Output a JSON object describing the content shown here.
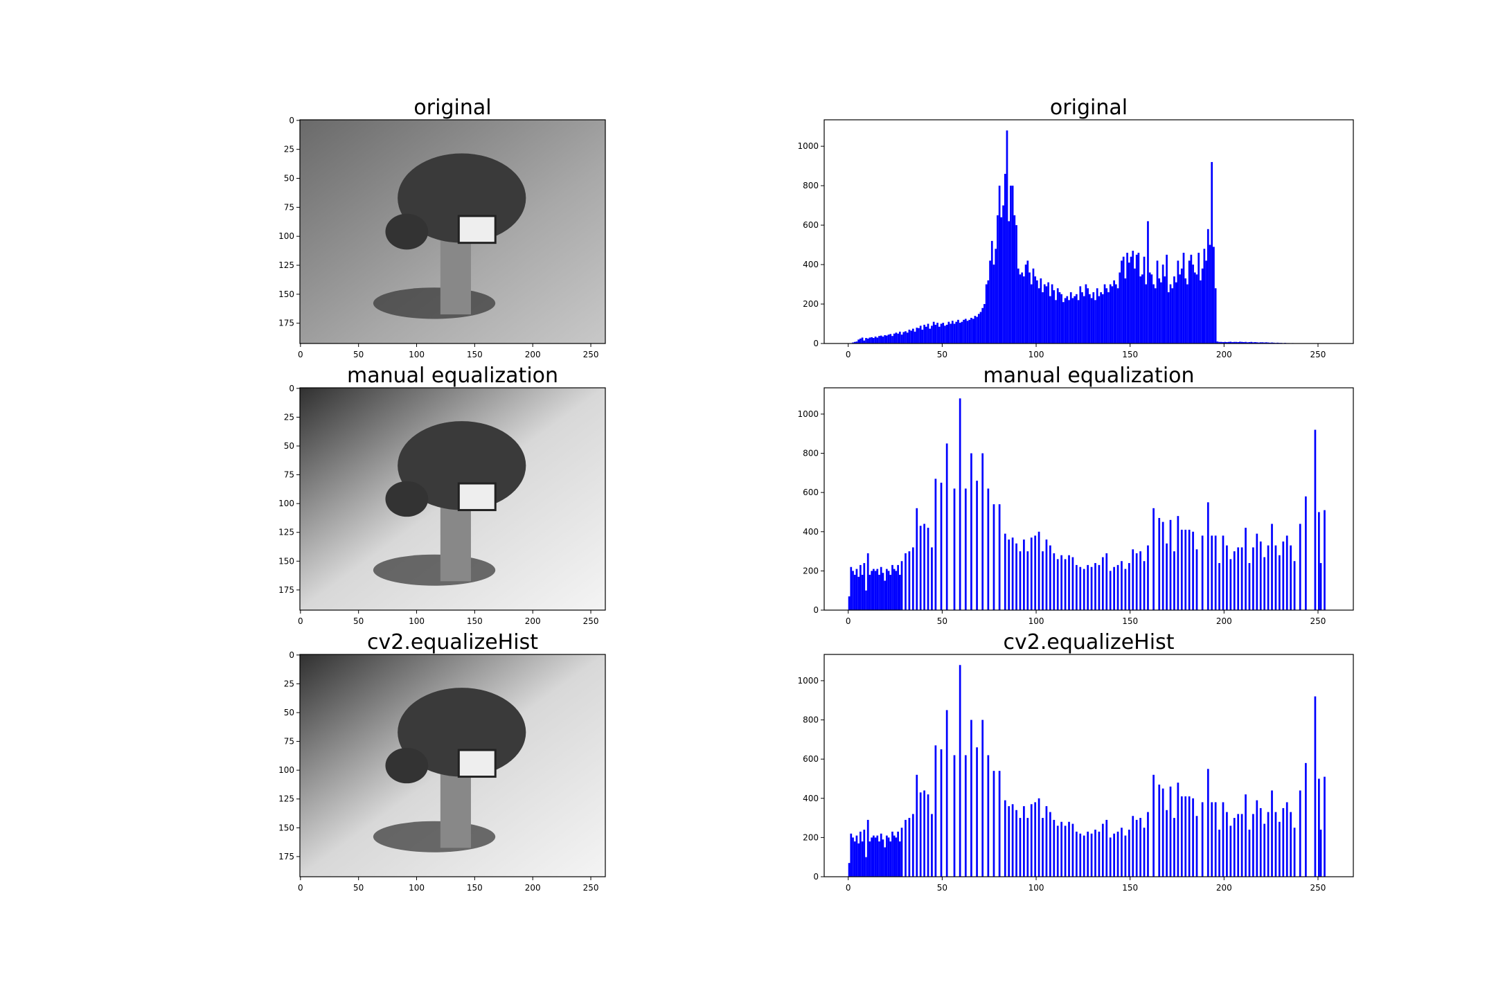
{
  "chart_data": [
    {
      "type": "image",
      "title": "original",
      "xlim": [
        -0.5,
        262.5
      ],
      "ylim": [
        192.5,
        -0.5
      ],
      "xticks": [
        0,
        50,
        100,
        150,
        200,
        250
      ],
      "yticks": [
        0,
        25,
        50,
        75,
        100,
        125,
        150,
        175
      ]
    },
    {
      "type": "bar",
      "title": "original",
      "color": "#0000ff",
      "xlim": [
        -12.8,
        268.8
      ],
      "ylim": [
        0,
        1134
      ],
      "xticks": [
        0,
        50,
        100,
        150,
        200,
        250
      ],
      "yticks": [
        0,
        200,
        400,
        600,
        800,
        1000
      ],
      "x": [
        0,
        1,
        2,
        3,
        4,
        5,
        6,
        7,
        8,
        9,
        10,
        11,
        12,
        13,
        14,
        15,
        16,
        17,
        18,
        19,
        20,
        21,
        22,
        23,
        24,
        25,
        26,
        27,
        28,
        29,
        30,
        31,
        32,
        33,
        34,
        35,
        36,
        37,
        38,
        39,
        40,
        41,
        42,
        43,
        44,
        45,
        46,
        47,
        48,
        49,
        50,
        51,
        52,
        53,
        54,
        55,
        56,
        57,
        58,
        59,
        60,
        61,
        62,
        63,
        64,
        65,
        66,
        67,
        68,
        69,
        70,
        71,
        72,
        73,
        74,
        75,
        76,
        77,
        78,
        79,
        80,
        81,
        82,
        83,
        84,
        85,
        86,
        87,
        88,
        89,
        90,
        91,
        92,
        93,
        94,
        95,
        96,
        97,
        98,
        99,
        100,
        101,
        102,
        103,
        104,
        105,
        106,
        107,
        108,
        109,
        110,
        111,
        112,
        113,
        114,
        115,
        116,
        117,
        118,
        119,
        120,
        121,
        122,
        123,
        124,
        125,
        126,
        127,
        128,
        129,
        130,
        131,
        132,
        133,
        134,
        135,
        136,
        137,
        138,
        139,
        140,
        141,
        142,
        143,
        144,
        145,
        146,
        147,
        148,
        149,
        150,
        151,
        152,
        153,
        154,
        155,
        156,
        157,
        158,
        159,
        160,
        161,
        162,
        163,
        164,
        165,
        166,
        167,
        168,
        169,
        170,
        171,
        172,
        173,
        174,
        175,
        176,
        177,
        178,
        179,
        180,
        181,
        182,
        183,
        184,
        185,
        186,
        187,
        188,
        189,
        190,
        191,
        192,
        193,
        194,
        195,
        196,
        197,
        198,
        199,
        200,
        201,
        202,
        203,
        204,
        205,
        206,
        207,
        208,
        209,
        210,
        211,
        212,
        213,
        214,
        215,
        216,
        217,
        218,
        219,
        220,
        221,
        222,
        223,
        224,
        225,
        226,
        227,
        228,
        229,
        230,
        231,
        232,
        233,
        234,
        235,
        236,
        237,
        238,
        239
      ],
      "values": [
        0,
        2,
        5,
        8,
        10,
        20,
        25,
        30,
        15,
        28,
        25,
        30,
        32,
        28,
        35,
        30,
        38,
        40,
        35,
        42,
        40,
        45,
        48,
        38,
        50,
        55,
        50,
        60,
        45,
        58,
        62,
        55,
        70,
        65,
        75,
        60,
        80,
        78,
        90,
        70,
        95,
        85,
        100,
        75,
        90,
        110,
        95,
        105,
        85,
        100,
        105,
        90,
        95,
        110,
        100,
        115,
        100,
        110,
        120,
        105,
        110,
        120,
        125,
        115,
        120,
        130,
        125,
        140,
        135,
        150,
        160,
        180,
        200,
        300,
        320,
        420,
        520,
        400,
        480,
        650,
        800,
        640,
        700,
        860,
        1080,
        620,
        800,
        800,
        650,
        600,
        380,
        350,
        360,
        340,
        400,
        420,
        360,
        300,
        380,
        340,
        320,
        280,
        330,
        260,
        300,
        290,
        310,
        240,
        300,
        270,
        220,
        280,
        260,
        250,
        210,
        230,
        240,
        220,
        260,
        230,
        240,
        250,
        220,
        290,
        260,
        240,
        300,
        280,
        250,
        230,
        260,
        220,
        280,
        240,
        260,
        250,
        300,
        280,
        260,
        300,
        290,
        320,
        300,
        280,
        360,
        420,
        440,
        330,
        460,
        410,
        440,
        470,
        380,
        450,
        460,
        340,
        350,
        440,
        300,
        620,
        360,
        350,
        300,
        280,
        420,
        330,
        310,
        400,
        340,
        450,
        260,
        300,
        280,
        340,
        310,
        420,
        350,
        380,
        460,
        330,
        300,
        420,
        450,
        400,
        360,
        350,
        460,
        320,
        380,
        480,
        420,
        580,
        500,
        920,
        490,
        280,
        10,
        8,
        8,
        7,
        8,
        7,
        8,
        9,
        7,
        8,
        8,
        7,
        9,
        8,
        7,
        8,
        6,
        7,
        8,
        6,
        7,
        6,
        5,
        6,
        6,
        5,
        6,
        5,
        4,
        5,
        4,
        3,
        4,
        3,
        3,
        2,
        3,
        2,
        2,
        1,
        2,
        1,
        0,
        0
      ]
    },
    {
      "type": "image",
      "title": "manual equalization",
      "xlim": [
        -0.5,
        262.5
      ],
      "ylim": [
        192.5,
        -0.5
      ],
      "xticks": [
        0,
        50,
        100,
        150,
        200,
        250
      ],
      "yticks": [
        0,
        25,
        50,
        75,
        100,
        125,
        150,
        175
      ]
    },
    {
      "type": "bar",
      "title": "manual equalization",
      "color": "#0000ff",
      "xlim": [
        -12.8,
        268.8
      ],
      "ylim": [
        0,
        1134
      ],
      "xticks": [
        0,
        50,
        100,
        150,
        200,
        250
      ],
      "yticks": [
        0,
        200,
        400,
        600,
        800,
        1000
      ],
      "x": [
        0,
        1,
        2,
        3,
        4,
        5,
        6,
        7,
        8,
        9,
        10,
        11,
        12,
        13,
        14,
        15,
        16,
        17,
        18,
        19,
        20,
        21,
        22,
        23,
        24,
        25,
        26,
        27,
        28,
        30,
        32,
        34,
        36,
        38,
        40,
        42,
        44,
        46,
        49,
        52,
        56,
        59,
        62,
        65,
        68,
        71,
        74,
        77,
        80,
        83,
        85,
        87,
        89,
        91,
        93,
        95,
        97,
        99,
        101,
        103,
        105,
        107,
        109,
        111,
        113,
        115,
        117,
        119,
        121,
        123,
        125,
        127,
        129,
        131,
        133,
        135,
        137,
        139,
        141,
        143,
        145,
        147,
        149,
        151,
        153,
        155,
        157,
        159,
        162,
        165,
        167,
        169,
        171,
        173,
        175,
        177,
        179,
        181,
        183,
        185,
        188,
        191,
        193,
        195,
        197,
        199,
        201,
        203,
        205,
        207,
        209,
        211,
        213,
        215,
        217,
        219,
        221,
        223,
        225,
        227,
        229,
        231,
        233,
        235,
        237,
        240,
        243,
        248,
        250,
        251,
        253
      ],
      "values": [
        70,
        220,
        200,
        180,
        210,
        170,
        230,
        180,
        240,
        100,
        290,
        180,
        200,
        210,
        200,
        210,
        180,
        220,
        190,
        150,
        210,
        200,
        180,
        230,
        210,
        200,
        230,
        180,
        250,
        290,
        300,
        320,
        520,
        430,
        440,
        420,
        320,
        670,
        650,
        850,
        620,
        1080,
        620,
        800,
        660,
        800,
        620,
        540,
        540,
        390,
        360,
        370,
        340,
        300,
        360,
        300,
        370,
        380,
        400,
        300,
        360,
        330,
        290,
        260,
        280,
        260,
        280,
        270,
        230,
        220,
        210,
        230,
        220,
        240,
        230,
        270,
        290,
        200,
        220,
        230,
        250,
        210,
        240,
        310,
        290,
        300,
        250,
        330,
        520,
        470,
        450,
        340,
        460,
        300,
        480,
        410,
        410,
        410,
        400,
        310,
        380,
        550,
        380,
        380,
        240,
        380,
        330,
        260,
        300,
        320,
        320,
        420,
        240,
        320,
        390,
        350,
        270,
        330,
        440,
        330,
        280,
        350,
        380,
        330,
        250,
        440,
        580,
        920,
        500,
        240,
        510
      ]
    },
    {
      "type": "image",
      "title": "cv2.equalizeHist",
      "xlim": [
        -0.5,
        262.5
      ],
      "ylim": [
        192.5,
        -0.5
      ],
      "xticks": [
        0,
        50,
        100,
        150,
        200,
        250
      ],
      "yticks": [
        0,
        25,
        50,
        75,
        100,
        125,
        150,
        175
      ]
    },
    {
      "type": "bar",
      "title": "cv2.equalizeHist",
      "color": "#0000ff",
      "xlim": [
        -12.8,
        268.8
      ],
      "ylim": [
        0,
        1134
      ],
      "xticks": [
        0,
        50,
        100,
        150,
        200,
        250
      ],
      "yticks": [
        0,
        200,
        400,
        600,
        800,
        1000
      ],
      "x": [
        0,
        1,
        2,
        3,
        4,
        5,
        6,
        7,
        8,
        9,
        10,
        11,
        12,
        13,
        14,
        15,
        16,
        17,
        18,
        19,
        20,
        21,
        22,
        23,
        24,
        25,
        26,
        27,
        28,
        30,
        32,
        34,
        36,
        38,
        40,
        42,
        44,
        46,
        49,
        52,
        56,
        59,
        62,
        65,
        68,
        71,
        74,
        77,
        80,
        83,
        85,
        87,
        89,
        91,
        93,
        95,
        97,
        99,
        101,
        103,
        105,
        107,
        109,
        111,
        113,
        115,
        117,
        119,
        121,
        123,
        125,
        127,
        129,
        131,
        133,
        135,
        137,
        139,
        141,
        143,
        145,
        147,
        149,
        151,
        153,
        155,
        157,
        159,
        162,
        165,
        167,
        169,
        171,
        173,
        175,
        177,
        179,
        181,
        183,
        185,
        188,
        191,
        193,
        195,
        197,
        199,
        201,
        203,
        205,
        207,
        209,
        211,
        213,
        215,
        217,
        219,
        221,
        223,
        225,
        227,
        229,
        231,
        233,
        235,
        237,
        240,
        243,
        248,
        250,
        251,
        253
      ],
      "values": [
        70,
        220,
        200,
        180,
        210,
        170,
        230,
        180,
        240,
        100,
        290,
        180,
        200,
        210,
        200,
        210,
        180,
        220,
        190,
        150,
        210,
        200,
        180,
        230,
        210,
        200,
        230,
        180,
        250,
        290,
        300,
        320,
        520,
        430,
        440,
        420,
        320,
        670,
        650,
        850,
        620,
        1080,
        620,
        800,
        660,
        800,
        620,
        540,
        540,
        390,
        360,
        370,
        340,
        300,
        360,
        300,
        370,
        380,
        400,
        300,
        360,
        330,
        290,
        260,
        280,
        260,
        280,
        270,
        230,
        220,
        210,
        230,
        220,
        240,
        230,
        270,
        290,
        200,
        220,
        230,
        250,
        210,
        240,
        310,
        290,
        300,
        250,
        330,
        520,
        470,
        450,
        340,
        460,
        300,
        480,
        410,
        410,
        410,
        400,
        310,
        380,
        550,
        380,
        380,
        240,
        380,
        330,
        260,
        300,
        320,
        320,
        420,
        240,
        320,
        390,
        350,
        270,
        330,
        440,
        330,
        280,
        350,
        380,
        330,
        250,
        440,
        580,
        920,
        500,
        240,
        510
      ]
    }
  ]
}
